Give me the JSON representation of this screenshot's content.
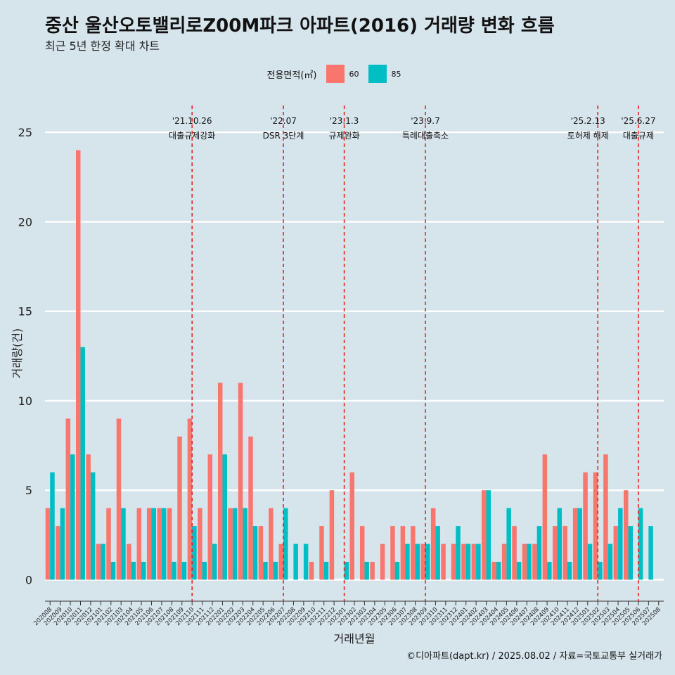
{
  "title": "중산 울산오토밸리로Z00M파크 아파트(2016) 거래량 변화 흐름",
  "subtitle": "최근 5년 한정 확대 차트",
  "caption": "©디아파트(dapt.kr) / 2025.08.02 / 자료=국토교통부 실거래가",
  "colors": {
    "s60": "#f8766d",
    "s85": "#00bfc4",
    "background": "#d6e4ec",
    "grid": "#ffffff",
    "event_line": "#e41a1c"
  },
  "chart_data": {
    "type": "bar",
    "xlabel": "거래년월",
    "ylabel": "거래량(건)",
    "ylim": [
      -1.2,
      26.5
    ],
    "yticks": [
      0,
      5,
      10,
      15,
      20,
      25
    ],
    "legend_title": "전용면적(㎡)",
    "legend_position": "top",
    "categories": [
      "202008",
      "202009",
      "202010",
      "202011",
      "202012",
      "202101",
      "202102",
      "202103",
      "202104",
      "202105",
      "202106",
      "202107",
      "202108",
      "202109",
      "202110",
      "202111",
      "202112",
      "202201",
      "202202",
      "202203",
      "202204",
      "202205",
      "202206",
      "202207",
      "202208",
      "202209",
      "202210",
      "202211",
      "202212",
      "202301",
      "202302",
      "202303",
      "202304",
      "202305",
      "202306",
      "202307",
      "202308",
      "202309",
      "202310",
      "202311",
      "202312",
      "202401",
      "202402",
      "202403",
      "202404",
      "202405",
      "202406",
      "202407",
      "202408",
      "202409",
      "202410",
      "202411",
      "202412",
      "202501",
      "202502",
      "202503",
      "202504",
      "202505",
      "202506",
      "202507",
      "202508"
    ],
    "series": [
      {
        "name": "60",
        "values": [
          4,
          3,
          9,
          24,
          7,
          2,
          4,
          9,
          2,
          4,
          4,
          4,
          4,
          8,
          9,
          4,
          7,
          11,
          4,
          11,
          8,
          3,
          4,
          2,
          0,
          0,
          1,
          3,
          5,
          0,
          6,
          3,
          1,
          2,
          3,
          3,
          3,
          2,
          4,
          2,
          2,
          2,
          2,
          5,
          1,
          2,
          3,
          2,
          2,
          7,
          3,
          3,
          4,
          6,
          6,
          7,
          3,
          5,
          0,
          0,
          0
        ]
      },
      {
        "name": "85",
        "values": [
          6,
          4,
          7,
          13,
          6,
          2,
          1,
          4,
          1,
          1,
          4,
          4,
          1,
          1,
          3,
          1,
          2,
          7,
          4,
          4,
          3,
          1,
          1,
          4,
          2,
          2,
          0,
          1,
          0,
          1,
          0,
          1,
          0,
          0,
          1,
          2,
          2,
          2,
          3,
          0,
          3,
          2,
          2,
          5,
          1,
          4,
          1,
          2,
          3,
          1,
          4,
          1,
          4,
          2,
          1,
          2,
          4,
          3,
          4,
          3,
          0
        ]
      }
    ],
    "events": [
      {
        "x": "202110",
        "date": "'21.10.26",
        "label": "대출규제강화"
      },
      {
        "x": "202207",
        "date": "'22.07",
        "label": "DSR 3단계"
      },
      {
        "x": "202301",
        "date": "'23.1.3",
        "label": "규제완화"
      },
      {
        "x": "202309",
        "date": "'23.9.7",
        "label": "특례대출축소"
      },
      {
        "x": "202502",
        "date": "'25.2.13",
        "label": "토허제 해제"
      },
      {
        "x": "202506",
        "date": "'25.6.27",
        "label": "대출규제"
      }
    ]
  }
}
